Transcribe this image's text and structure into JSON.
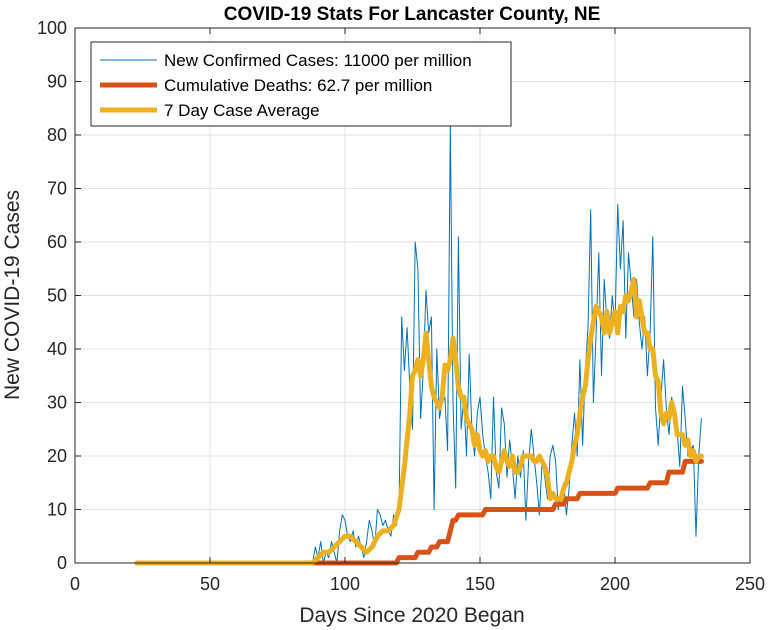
{
  "chart_data": {
    "type": "line",
    "title": "COVID-19 Stats For Lancaster County, NE",
    "xlabel": "Days Since 2020 Began",
    "ylabel": "New COVID-19 Cases",
    "xlim": [
      0,
      250
    ],
    "ylim": [
      0,
      100
    ],
    "xticks": [
      0,
      50,
      100,
      150,
      200,
      250
    ],
    "yticks": [
      0,
      10,
      20,
      30,
      40,
      50,
      60,
      70,
      80,
      90,
      100
    ],
    "grid": true,
    "legend_position": "top-left",
    "series": [
      {
        "name": "New Confirmed Cases: 11000 per million",
        "color": "#0072BD",
        "style": "thin",
        "points": [
          [
            23,
            0
          ],
          [
            88,
            0
          ],
          [
            89,
            3
          ],
          [
            90,
            1
          ],
          [
            91,
            4
          ],
          [
            92,
            0
          ],
          [
            93,
            2
          ],
          [
            94,
            1
          ],
          [
            95,
            4
          ],
          [
            96,
            2
          ],
          [
            97,
            0
          ],
          [
            98,
            6
          ],
          [
            99,
            9
          ],
          [
            100,
            8
          ],
          [
            101,
            5
          ],
          [
            102,
            4
          ],
          [
            103,
            6
          ],
          [
            104,
            3
          ],
          [
            105,
            5
          ],
          [
            106,
            3
          ],
          [
            107,
            1
          ],
          [
            108,
            4
          ],
          [
            109,
            8
          ],
          [
            110,
            6
          ],
          [
            111,
            3
          ],
          [
            112,
            10
          ],
          [
            113,
            9
          ],
          [
            114,
            7
          ],
          [
            115,
            8
          ],
          [
            116,
            6
          ],
          [
            117,
            5
          ],
          [
            118,
            9
          ],
          [
            119,
            7
          ],
          [
            120,
            10
          ],
          [
            121,
            46
          ],
          [
            122,
            36
          ],
          [
            123,
            44
          ],
          [
            124,
            33
          ],
          [
            125,
            25
          ],
          [
            126,
            60
          ],
          [
            127,
            55
          ],
          [
            128,
            27
          ],
          [
            129,
            36
          ],
          [
            130,
            51
          ],
          [
            131,
            43
          ],
          [
            132,
            46
          ],
          [
            133,
            10
          ],
          [
            134,
            40
          ],
          [
            135,
            27
          ],
          [
            136,
            30
          ],
          [
            137,
            31
          ],
          [
            138,
            21
          ],
          [
            139,
            82
          ],
          [
            140,
            30
          ],
          [
            141,
            14
          ],
          [
            142,
            61
          ],
          [
            143,
            25
          ],
          [
            144,
            31
          ],
          [
            145,
            20
          ],
          [
            146,
            39
          ],
          [
            147,
            25
          ],
          [
            148,
            20
          ],
          [
            149,
            28
          ],
          [
            150,
            31
          ],
          [
            151,
            24
          ],
          [
            152,
            20
          ],
          [
            153,
            17
          ],
          [
            154,
            12
          ],
          [
            155,
            31
          ],
          [
            156,
            17
          ],
          [
            157,
            14
          ],
          [
            158,
            29
          ],
          [
            159,
            26
          ],
          [
            160,
            16
          ],
          [
            161,
            23
          ],
          [
            162,
            18
          ],
          [
            163,
            12
          ],
          [
            164,
            20
          ],
          [
            165,
            16
          ],
          [
            166,
            21
          ],
          [
            167,
            8
          ],
          [
            168,
            19
          ],
          [
            169,
            25
          ],
          [
            170,
            20
          ],
          [
            171,
            15
          ],
          [
            172,
            9
          ],
          [
            173,
            19
          ],
          [
            174,
            16
          ],
          [
            175,
            12
          ],
          [
            176,
            20
          ],
          [
            177,
            22
          ],
          [
            178,
            19
          ],
          [
            179,
            10
          ],
          [
            180,
            13
          ],
          [
            181,
            15
          ],
          [
            182,
            9
          ],
          [
            183,
            14
          ],
          [
            184,
            22
          ],
          [
            185,
            28
          ],
          [
            186,
            20
          ],
          [
            187,
            38
          ],
          [
            188,
            22
          ],
          [
            189,
            36
          ],
          [
            190,
            44
          ],
          [
            191,
            66
          ],
          [
            192,
            30
          ],
          [
            193,
            43
          ],
          [
            194,
            58
          ],
          [
            195,
            35
          ],
          [
            196,
            53
          ],
          [
            197,
            45
          ],
          [
            198,
            42
          ],
          [
            199,
            50
          ],
          [
            200,
            44
          ],
          [
            201,
            67
          ],
          [
            202,
            55
          ],
          [
            203,
            64
          ],
          [
            204,
            42
          ],
          [
            205,
            58
          ],
          [
            206,
            52
          ],
          [
            207,
            46
          ],
          [
            208,
            53
          ],
          [
            209,
            45
          ],
          [
            210,
            40
          ],
          [
            211,
            46
          ],
          [
            212,
            35
          ],
          [
            213,
            43
          ],
          [
            214,
            61
          ],
          [
            215,
            29
          ],
          [
            216,
            22
          ],
          [
            217,
            31
          ],
          [
            218,
            38
          ],
          [
            219,
            29
          ],
          [
            220,
            24
          ],
          [
            221,
            31
          ],
          [
            222,
            27
          ],
          [
            223,
            25
          ],
          [
            224,
            18
          ],
          [
            225,
            33
          ],
          [
            226,
            27
          ],
          [
            227,
            20
          ],
          [
            228,
            21
          ],
          [
            229,
            22
          ],
          [
            230,
            5
          ],
          [
            231,
            20
          ],
          [
            232,
            27
          ]
        ]
      },
      {
        "name": "Cumulative Deaths: 62.7 per million",
        "color": "#D95319",
        "style": "thick",
        "points": [
          [
            23,
            0
          ],
          [
            119,
            0
          ],
          [
            120,
            1
          ],
          [
            126,
            1
          ],
          [
            127,
            2
          ],
          [
            131,
            2
          ],
          [
            132,
            3
          ],
          [
            134,
            3
          ],
          [
            135,
            4
          ],
          [
            138,
            4
          ],
          [
            140,
            8
          ],
          [
            141,
            8
          ],
          [
            142,
            9
          ],
          [
            143,
            9
          ],
          [
            144,
            9
          ],
          [
            145,
            9
          ],
          [
            146,
            9
          ],
          [
            147,
            9
          ],
          [
            148,
            9
          ],
          [
            149,
            9
          ],
          [
            150,
            9
          ],
          [
            151,
            9
          ],
          [
            152,
            10
          ],
          [
            164,
            10
          ],
          [
            177,
            10
          ],
          [
            178,
            11
          ],
          [
            181,
            11
          ],
          [
            182,
            12
          ],
          [
            186,
            12
          ],
          [
            187,
            13
          ],
          [
            200,
            13
          ],
          [
            201,
            14
          ],
          [
            212,
            14
          ],
          [
            213,
            15
          ],
          [
            219,
            15
          ],
          [
            220,
            17
          ],
          [
            225,
            17
          ],
          [
            226,
            19
          ],
          [
            232,
            19
          ]
        ]
      },
      {
        "name": "7 Day Case Average",
        "color": "#EDB120",
        "style": "thick",
        "points": [
          [
            23,
            0
          ],
          [
            88,
            0
          ],
          [
            90,
            1
          ],
          [
            92,
            2
          ],
          [
            94,
            2
          ],
          [
            96,
            3
          ],
          [
            98,
            4
          ],
          [
            100,
            5
          ],
          [
            102,
            5
          ],
          [
            104,
            4
          ],
          [
            106,
            3
          ],
          [
            108,
            2
          ],
          [
            110,
            3
          ],
          [
            112,
            5
          ],
          [
            114,
            6
          ],
          [
            116,
            6
          ],
          [
            118,
            7
          ],
          [
            120,
            10
          ],
          [
            122,
            18
          ],
          [
            124,
            28
          ],
          [
            125,
            35
          ],
          [
            126,
            36
          ],
          [
            127,
            38
          ],
          [
            128,
            35
          ],
          [
            129,
            38
          ],
          [
            130,
            43
          ],
          [
            131,
            38
          ],
          [
            132,
            33
          ],
          [
            133,
            31
          ],
          [
            134,
            30
          ],
          [
            135,
            29
          ],
          [
            136,
            31
          ],
          [
            137,
            37
          ],
          [
            138,
            36
          ],
          [
            139,
            38
          ],
          [
            140,
            42
          ],
          [
            141,
            38
          ],
          [
            142,
            33
          ],
          [
            143,
            31
          ],
          [
            144,
            31
          ],
          [
            145,
            27
          ],
          [
            146,
            26
          ],
          [
            147,
            25
          ],
          [
            148,
            22
          ],
          [
            149,
            24
          ],
          [
            150,
            21
          ],
          [
            151,
            20
          ],
          [
            152,
            21
          ],
          [
            153,
            19
          ],
          [
            154,
            20
          ],
          [
            155,
            20
          ],
          [
            156,
            18
          ],
          [
            157,
            17
          ],
          [
            158,
            19
          ],
          [
            159,
            21
          ],
          [
            160,
            19
          ],
          [
            161,
            18
          ],
          [
            162,
            20
          ],
          [
            163,
            17
          ],
          [
            164,
            17
          ],
          [
            165,
            18
          ],
          [
            166,
            20
          ],
          [
            167,
            20
          ],
          [
            168,
            20
          ],
          [
            169,
            20
          ],
          [
            170,
            19
          ],
          [
            171,
            19
          ],
          [
            172,
            20
          ],
          [
            173,
            19
          ],
          [
            174,
            18
          ],
          [
            175,
            16
          ],
          [
            176,
            12
          ],
          [
            177,
            13
          ],
          [
            178,
            12
          ],
          [
            179,
            12
          ],
          [
            180,
            12
          ],
          [
            181,
            14
          ],
          [
            182,
            15
          ],
          [
            183,
            17
          ],
          [
            184,
            19
          ],
          [
            185,
            22
          ],
          [
            186,
            24
          ],
          [
            187,
            28
          ],
          [
            188,
            31
          ],
          [
            189,
            33
          ],
          [
            190,
            38
          ],
          [
            191,
            42
          ],
          [
            192,
            45
          ],
          [
            193,
            48
          ],
          [
            194,
            47
          ],
          [
            195,
            46
          ],
          [
            196,
            43
          ],
          [
            197,
            47
          ],
          [
            198,
            43
          ],
          [
            199,
            45
          ],
          [
            200,
            47
          ],
          [
            201,
            43
          ],
          [
            202,
            48
          ],
          [
            203,
            47
          ],
          [
            204,
            50
          ],
          [
            205,
            49
          ],
          [
            206,
            51
          ],
          [
            207,
            53
          ],
          [
            208,
            46
          ],
          [
            209,
            49
          ],
          [
            210,
            46
          ],
          [
            211,
            43
          ],
          [
            212,
            43
          ],
          [
            213,
            40
          ],
          [
            214,
            40
          ],
          [
            215,
            35
          ],
          [
            216,
            34
          ],
          [
            217,
            28
          ],
          [
            218,
            26
          ],
          [
            219,
            28
          ],
          [
            220,
            27
          ],
          [
            221,
            30
          ],
          [
            222,
            28
          ],
          [
            223,
            24
          ],
          [
            224,
            24
          ],
          [
            225,
            24
          ],
          [
            226,
            22
          ],
          [
            227,
            23
          ],
          [
            228,
            20
          ],
          [
            229,
            21
          ],
          [
            230,
            19
          ],
          [
            231,
            20
          ],
          [
            232,
            20
          ]
        ]
      }
    ]
  }
}
